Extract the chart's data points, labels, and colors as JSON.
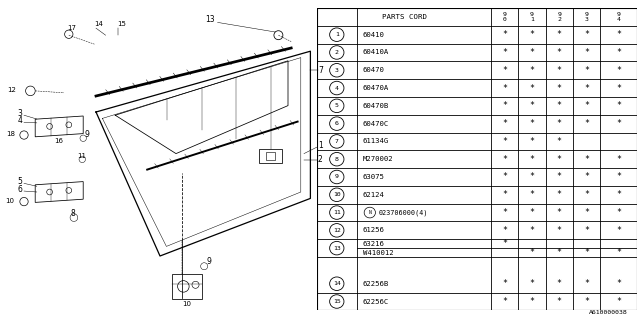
{
  "title": "A610000038",
  "rows": [
    {
      "num": "1",
      "code": "60410",
      "marks": [
        1,
        1,
        1,
        1,
        1
      ]
    },
    {
      "num": "2",
      "code": "60410A",
      "marks": [
        1,
        1,
        1,
        1,
        1
      ]
    },
    {
      "num": "3",
      "code": "60470",
      "marks": [
        1,
        1,
        1,
        1,
        1
      ]
    },
    {
      "num": "4",
      "code": "60470A",
      "marks": [
        1,
        1,
        1,
        1,
        1
      ]
    },
    {
      "num": "5",
      "code": "60470B",
      "marks": [
        1,
        1,
        1,
        1,
        1
      ]
    },
    {
      "num": "6",
      "code": "60470C",
      "marks": [
        1,
        1,
        1,
        1,
        1
      ]
    },
    {
      "num": "7",
      "code": "61134G",
      "marks": [
        1,
        1,
        1,
        0,
        0
      ]
    },
    {
      "num": "8",
      "code": "M270002",
      "marks": [
        1,
        1,
        1,
        1,
        1
      ]
    },
    {
      "num": "9",
      "code": "63075",
      "marks": [
        1,
        1,
        1,
        1,
        1
      ]
    },
    {
      "num": "10",
      "code": "62124",
      "marks": [
        1,
        1,
        1,
        1,
        1
      ]
    },
    {
      "num": "11",
      "code": "023706000(4)",
      "marks": [
        1,
        1,
        1,
        1,
        1
      ],
      "N": true
    },
    {
      "num": "12",
      "code": "61256",
      "marks": [
        1,
        1,
        1,
        1,
        1
      ]
    },
    {
      "num": "13",
      "code": "63216",
      "marks": [
        1,
        0,
        0,
        0,
        0
      ],
      "split_top": true,
      "code2": "W410012",
      "marks2": [
        0,
        1,
        1,
        1,
        1
      ]
    },
    {
      "num": "14",
      "code": "62256B",
      "marks": [
        1,
        1,
        1,
        1,
        1
      ]
    },
    {
      "num": "15",
      "code": "62256C",
      "marks": [
        1,
        1,
        1,
        1,
        1
      ]
    }
  ],
  "bg_color": "#ffffff",
  "line_color": "#000000",
  "font_size": 6.5,
  "star": "*",
  "year_cols": [
    "9\n0",
    "9\n1",
    "9\n2",
    "9\n3",
    "9\n4"
  ]
}
